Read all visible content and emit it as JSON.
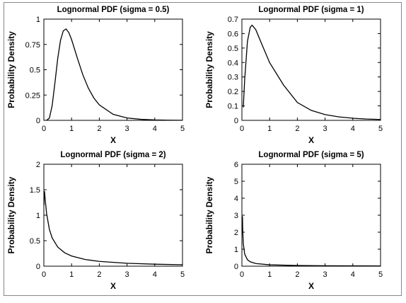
{
  "chart_data": [
    {
      "type": "line",
      "title": "Lognormal PDF (sigma = 0.5)",
      "xlabel": "X",
      "ylabel": "Probability Density",
      "color": "#000000",
      "x": [
        0,
        0.1,
        0.2,
        0.3,
        0.4,
        0.5,
        0.6,
        0.7,
        0.8,
        0.9,
        1,
        1.2,
        1.4,
        1.6,
        1.8,
        2,
        2.5,
        3,
        3.5,
        4,
        4.5,
        5
      ],
      "values": [
        0,
        0,
        0.0225,
        0.1466,
        0.372,
        0.61,
        0.789,
        0.884,
        0.903,
        0.867,
        0.798,
        0.622,
        0.454,
        0.321,
        0.222,
        0.153,
        0.0595,
        0.0238,
        0.0099,
        0.0043,
        0.0019,
        0.0009
      ],
      "xlim": [
        0,
        5
      ],
      "xticks": [
        0,
        1,
        2,
        3,
        4,
        5
      ],
      "ylim": [
        0,
        1
      ],
      "yticks": [
        0,
        0.25,
        0.5,
        0.75,
        1
      ]
    },
    {
      "type": "line",
      "title": "Lognormal PDF (sigma = 1)",
      "xlabel": "X",
      "ylabel": "Probability Density",
      "color": "#000000",
      "x": [
        0.05,
        0.1,
        0.2,
        0.3,
        0.368,
        0.5,
        0.7,
        1,
        1.5,
        2,
        2.5,
        3,
        3.5,
        4,
        4.5,
        5
      ],
      "values": [
        0.0898,
        0.2816,
        0.5463,
        0.644,
        0.6577,
        0.6274,
        0.5348,
        0.3989,
        0.2449,
        0.1234,
        0.0689,
        0.0398,
        0.0237,
        0.0146,
        0.0092,
        0.006
      ],
      "xlim": [
        0,
        5
      ],
      "xticks": [
        0,
        1,
        2,
        3,
        4,
        5
      ],
      "ylim": [
        0,
        0.7
      ],
      "yticks": [
        0,
        0.1,
        0.2,
        0.3,
        0.4,
        0.5,
        0.6,
        0.7
      ]
    },
    {
      "type": "line",
      "title": "Lognormal PDF (sigma = 2)",
      "xlabel": "X",
      "ylabel": "Probability Density",
      "color": "#000000",
      "x": [
        0.005,
        0.01,
        0.02,
        0.03,
        0.05,
        0.1,
        0.2,
        0.3,
        0.5,
        0.75,
        1,
        1.5,
        2,
        3,
        4,
        5
      ],
      "values": [
        1.193,
        1.408,
        1.473,
        1.429,
        1.299,
        1.028,
        0.7215,
        0.5547,
        0.3757,
        0.2632,
        0.1995,
        0.1303,
        0.0939,
        0.0572,
        0.0392,
        0.0289
      ],
      "xlim": [
        0,
        5
      ],
      "xticks": [
        0,
        1,
        2,
        3,
        4,
        5
      ],
      "ylim": [
        0,
        2
      ],
      "yticks": [
        0,
        0.5,
        1,
        1.5,
        2
      ]
    },
    {
      "type": "line",
      "title": "Lognormal PDF (sigma = 5)",
      "xlabel": "X",
      "ylabel": "Probability Density",
      "color": "#000000",
      "x": [
        0.02,
        0.03,
        0.05,
        0.1,
        0.2,
        0.3,
        0.5,
        1,
        2,
        3,
        4,
        5
      ],
      "values": [
        2.938,
        2.08,
        1.334,
        0.7177,
        0.3789,
        0.2584,
        0.1581,
        0.0798,
        0.0391,
        0.026,
        0.0192,
        0.0152
      ],
      "xlim": [
        0,
        5
      ],
      "xticks": [
        0,
        1,
        2,
        3,
        4,
        5
      ],
      "ylim": [
        0,
        6
      ],
      "yticks": [
        0,
        1,
        2,
        3,
        4,
        5,
        6
      ]
    }
  ]
}
